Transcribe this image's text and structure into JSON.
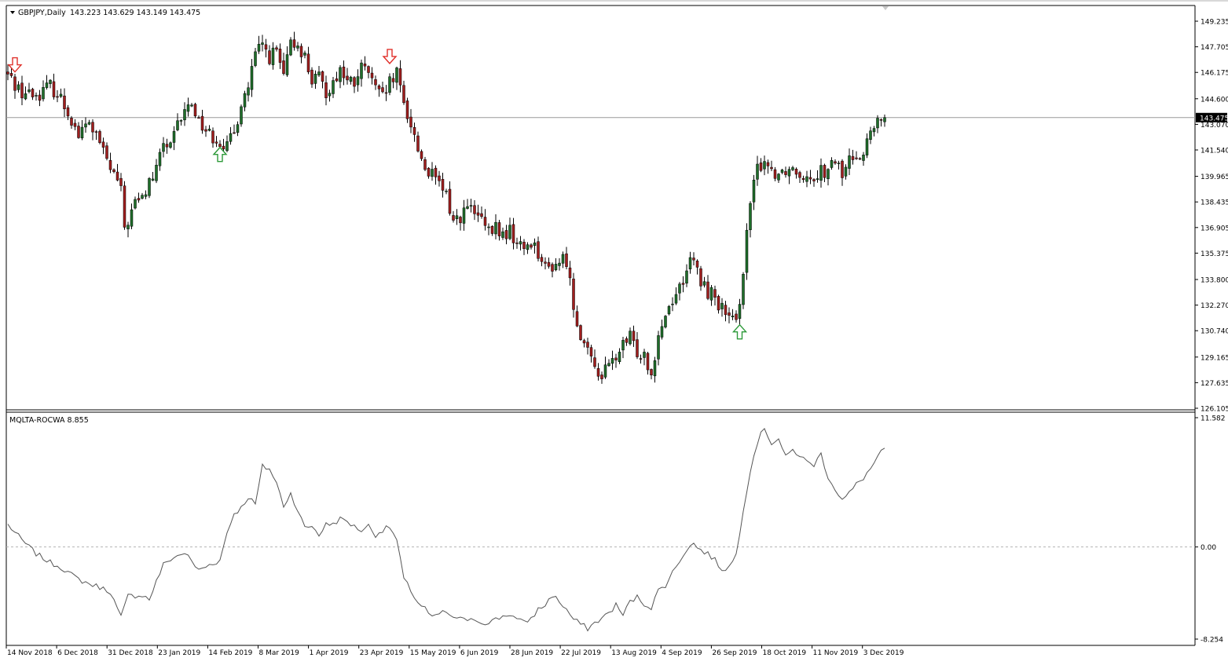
{
  "main_panel": {
    "symbol_label": "GBPJPY,Daily",
    "ohlc_label": "143.223 143.629 143.149 143.475",
    "current_price": "143.475",
    "current_price_value": 143.475
  },
  "indicator_panel": {
    "label": "MQLTA-ROCWA 8.855"
  },
  "colors": {
    "bull_candle": "#1f6e2a",
    "bear_candle": "#a01e1e",
    "wick": "#000000",
    "indicator_line": "#555555",
    "arrow_up": "#2e9a3a",
    "arrow_down": "#e0302a",
    "price_line": "#9a9a9a"
  },
  "chart_data": [
    {
      "type": "candlestick",
      "title": "GBPJPY,Daily",
      "ylim": [
        126.105,
        149.235
      ],
      "y_ticks": [
        "149.235",
        "147.705",
        "146.175",
        "144.600",
        "143.070",
        "141.540",
        "139.965",
        "138.435",
        "136.905",
        "135.375",
        "133.800",
        "132.270",
        "130.740",
        "129.165",
        "127.635",
        "126.105"
      ],
      "x_tick_labels": [
        "14 Nov 2018",
        "6 Dec 2018",
        "31 Dec 2018",
        "23 Jan 2019",
        "14 Feb 2019",
        "8 Mar 2019",
        "1 Apr 2019",
        "23 Apr 2019",
        "15 May 2019",
        "6 Jun 2019",
        "28 Jun 2019",
        "22 Jul 2019",
        "13 Aug 2019",
        "4 Sep 2019",
        "26 Sep 2019",
        "18 Oct 2019",
        "11 Nov 2019",
        "3 Dec 2019"
      ],
      "close_path": [
        [
          0,
          146.0
        ],
        [
          4,
          145.0
        ],
        [
          8,
          144.8
        ],
        [
          12,
          145.4
        ],
        [
          15,
          144.6
        ],
        [
          18,
          143.4
        ],
        [
          20,
          142.4
        ],
        [
          23,
          143.2
        ],
        [
          26,
          141.9
        ],
        [
          29,
          140.4
        ],
        [
          31,
          139.7
        ],
        [
          32,
          139.0
        ],
        [
          33,
          136.9
        ],
        [
          34,
          137.3
        ],
        [
          36,
          138.4
        ],
        [
          38,
          138.6
        ],
        [
          40,
          139.6
        ],
        [
          42,
          140.3
        ],
        [
          44,
          142.0
        ],
        [
          46,
          141.6
        ],
        [
          48,
          143.0
        ],
        [
          50,
          143.8
        ],
        [
          52,
          144.4
        ],
        [
          54,
          143.3
        ],
        [
          57,
          142.5
        ],
        [
          60,
          142.1
        ],
        [
          62,
          141.7
        ],
        [
          64,
          142.5
        ],
        [
          66,
          144.4
        ],
        [
          68,
          145.3
        ],
        [
          70,
          147.2
        ],
        [
          72,
          147.8
        ],
        [
          74,
          147.1
        ],
        [
          76,
          147.4
        ],
        [
          78,
          145.9
        ],
        [
          80,
          147.8
        ],
        [
          82,
          147.9
        ],
        [
          84,
          147.1
        ],
        [
          86,
          145.7
        ],
        [
          88,
          145.8
        ],
        [
          90,
          145.0
        ],
        [
          92,
          145.6
        ],
        [
          94,
          146.4
        ],
        [
          96,
          145.6
        ],
        [
          98,
          145.5
        ],
        [
          100,
          146.4
        ],
        [
          102,
          146.2
        ],
        [
          104,
          145.1
        ],
        [
          106,
          144.6
        ],
        [
          108,
          145.5
        ],
        [
          110,
          146.0
        ],
        [
          112,
          144.3
        ],
        [
          114,
          143.1
        ],
        [
          116,
          141.6
        ],
        [
          118,
          140.5
        ],
        [
          120,
          140.0
        ],
        [
          122,
          139.4
        ],
        [
          124,
          138.8
        ],
        [
          126,
          137.3
        ],
        [
          128,
          137.6
        ],
        [
          130,
          138.1
        ],
        [
          132,
          137.7
        ],
        [
          134,
          137.3
        ],
        [
          136,
          136.5
        ],
        [
          138,
          136.9
        ],
        [
          140,
          136.4
        ],
        [
          142,
          136.7
        ],
        [
          144,
          135.9
        ],
        [
          146,
          135.7
        ],
        [
          148,
          136.1
        ],
        [
          150,
          135.5
        ],
        [
          152,
          134.4
        ],
        [
          154,
          134.6
        ],
        [
          156,
          134.9
        ],
        [
          158,
          135.0
        ],
        [
          160,
          132.2
        ],
        [
          162,
          130.6
        ],
        [
          164,
          129.3
        ],
        [
          166,
          128.6
        ],
        [
          168,
          128.1
        ],
        [
          170,
          128.6
        ],
        [
          172,
          129.2
        ],
        [
          174,
          129.8
        ],
        [
          176,
          130.3
        ],
        [
          178,
          129.5
        ],
        [
          180,
          129.4
        ],
        [
          182,
          128.2
        ],
        [
          184,
          130.6
        ],
        [
          186,
          131.7
        ],
        [
          188,
          132.7
        ],
        [
          190,
          133.3
        ],
        [
          192,
          134.5
        ],
        [
          194,
          134.9
        ],
        [
          196,
          133.6
        ],
        [
          198,
          133.1
        ],
        [
          200,
          132.8
        ],
        [
          202,
          132.0
        ],
        [
          204,
          131.4
        ],
        [
          206,
          131.0
        ],
        [
          208,
          134.5
        ],
        [
          210,
          138.3
        ],
        [
          212,
          140.4
        ],
        [
          214,
          141.0
        ],
        [
          216,
          140.3
        ],
        [
          218,
          140.2
        ],
        [
          220,
          140.4
        ],
        [
          222,
          140.5
        ],
        [
          224,
          140.2
        ],
        [
          226,
          140.1
        ],
        [
          228,
          140.0
        ],
        [
          230,
          140.4
        ],
        [
          232,
          140.1
        ],
        [
          234,
          141.0
        ],
        [
          236,
          140.0
        ],
        [
          238,
          140.9
        ],
        [
          240,
          141.4
        ],
        [
          242,
          141.3
        ],
        [
          244,
          142.6
        ],
        [
          246,
          143.0
        ],
        [
          248,
          143.475
        ]
      ],
      "signal_arrows": [
        {
          "type": "down",
          "bar": 2,
          "price": 146.3
        },
        {
          "type": "up",
          "bar": 60,
          "price": 141.6
        },
        {
          "type": "down",
          "bar": 108,
          "price": 146.8
        },
        {
          "type": "up",
          "bar": 207,
          "price": 131.0
        }
      ]
    },
    {
      "type": "line",
      "title": "MQLTA-ROCWA 8.855",
      "ylim": [
        -8.254,
        11.582
      ],
      "y_ticks": [
        "11.582",
        "0.00",
        "-8.254"
      ],
      "zero_line": true,
      "points": [
        [
          0,
          2.0
        ],
        [
          4,
          0.6
        ],
        [
          8,
          -0.6
        ],
        [
          12,
          -1.4
        ],
        [
          15,
          -1.8
        ],
        [
          18,
          -2.5
        ],
        [
          20,
          -2.9
        ],
        [
          23,
          -3.3
        ],
        [
          26,
          -3.6
        ],
        [
          29,
          -4.0
        ],
        [
          31,
          -5.6
        ],
        [
          32,
          -6.3
        ],
        [
          34,
          -4.4
        ],
        [
          38,
          -4.3
        ],
        [
          40,
          -4.7
        ],
        [
          42,
          -3.1
        ],
        [
          44,
          -1.6
        ],
        [
          46,
          -1.1
        ],
        [
          50,
          -0.5
        ],
        [
          54,
          -2.1
        ],
        [
          57,
          -1.6
        ],
        [
          60,
          -1.2
        ],
        [
          62,
          1.3
        ],
        [
          64,
          3.0
        ],
        [
          66,
          3.5
        ],
        [
          68,
          4.5
        ],
        [
          70,
          3.8
        ],
        [
          72,
          7.2
        ],
        [
          74,
          7.0
        ],
        [
          76,
          5.7
        ],
        [
          78,
          3.7
        ],
        [
          80,
          4.8
        ],
        [
          82,
          3.3
        ],
        [
          84,
          1.7
        ],
        [
          86,
          1.9
        ],
        [
          88,
          1.1
        ],
        [
          90,
          2.0
        ],
        [
          92,
          2.1
        ],
        [
          94,
          2.5
        ],
        [
          96,
          2.3
        ],
        [
          98,
          1.8
        ],
        [
          100,
          1.5
        ],
        [
          102,
          1.9
        ],
        [
          104,
          1.1
        ],
        [
          106,
          1.5
        ],
        [
          108,
          1.8
        ],
        [
          110,
          0.6
        ],
        [
          112,
          -2.9
        ],
        [
          114,
          -3.9
        ],
        [
          116,
          -5.0
        ],
        [
          118,
          -5.5
        ],
        [
          120,
          -6.4
        ],
        [
          122,
          -6.0
        ],
        [
          124,
          -5.8
        ],
        [
          126,
          -6.5
        ],
        [
          128,
          -6.2
        ],
        [
          130,
          -6.8
        ],
        [
          132,
          -6.4
        ],
        [
          134,
          -6.8
        ],
        [
          136,
          -6.7
        ],
        [
          138,
          -6.5
        ],
        [
          140,
          -6.2
        ],
        [
          142,
          -6.0
        ],
        [
          144,
          -6.5
        ],
        [
          146,
          -6.8
        ],
        [
          148,
          -6.4
        ],
        [
          150,
          -5.6
        ],
        [
          152,
          -5.2
        ],
        [
          154,
          -4.3
        ],
        [
          156,
          -4.9
        ],
        [
          158,
          -5.6
        ],
        [
          160,
          -6.5
        ],
        [
          162,
          -6.9
        ],
        [
          164,
          -7.3
        ],
        [
          166,
          -6.8
        ],
        [
          168,
          -6.4
        ],
        [
          170,
          -5.9
        ],
        [
          172,
          -5.2
        ],
        [
          174,
          -6.1
        ],
        [
          176,
          -4.9
        ],
        [
          178,
          -4.5
        ],
        [
          180,
          -5.1
        ],
        [
          182,
          -5.4
        ],
        [
          184,
          -3.9
        ],
        [
          186,
          -3.4
        ],
        [
          188,
          -2.3
        ],
        [
          190,
          -1.2
        ],
        [
          192,
          -0.2
        ],
        [
          194,
          0.3
        ],
        [
          196,
          -0.3
        ],
        [
          198,
          -0.6
        ],
        [
          200,
          -1.2
        ],
        [
          202,
          -2.0
        ],
        [
          204,
          -1.8
        ],
        [
          206,
          -0.7
        ],
        [
          208,
          3.4
        ],
        [
          210,
          6.9
        ],
        [
          212,
          9.4
        ],
        [
          214,
          10.7
        ],
        [
          216,
          9.3
        ],
        [
          218,
          9.7
        ],
        [
          220,
          8.0
        ],
        [
          222,
          8.7
        ],
        [
          224,
          8.2
        ],
        [
          226,
          7.6
        ],
        [
          228,
          7.4
        ],
        [
          230,
          8.3
        ],
        [
          232,
          6.3
        ],
        [
          234,
          5.2
        ],
        [
          236,
          4.2
        ],
        [
          238,
          4.8
        ],
        [
          240,
          5.6
        ],
        [
          242,
          6.2
        ],
        [
          244,
          7.0
        ],
        [
          246,
          8.0
        ],
        [
          248,
          8.855
        ]
      ]
    }
  ]
}
